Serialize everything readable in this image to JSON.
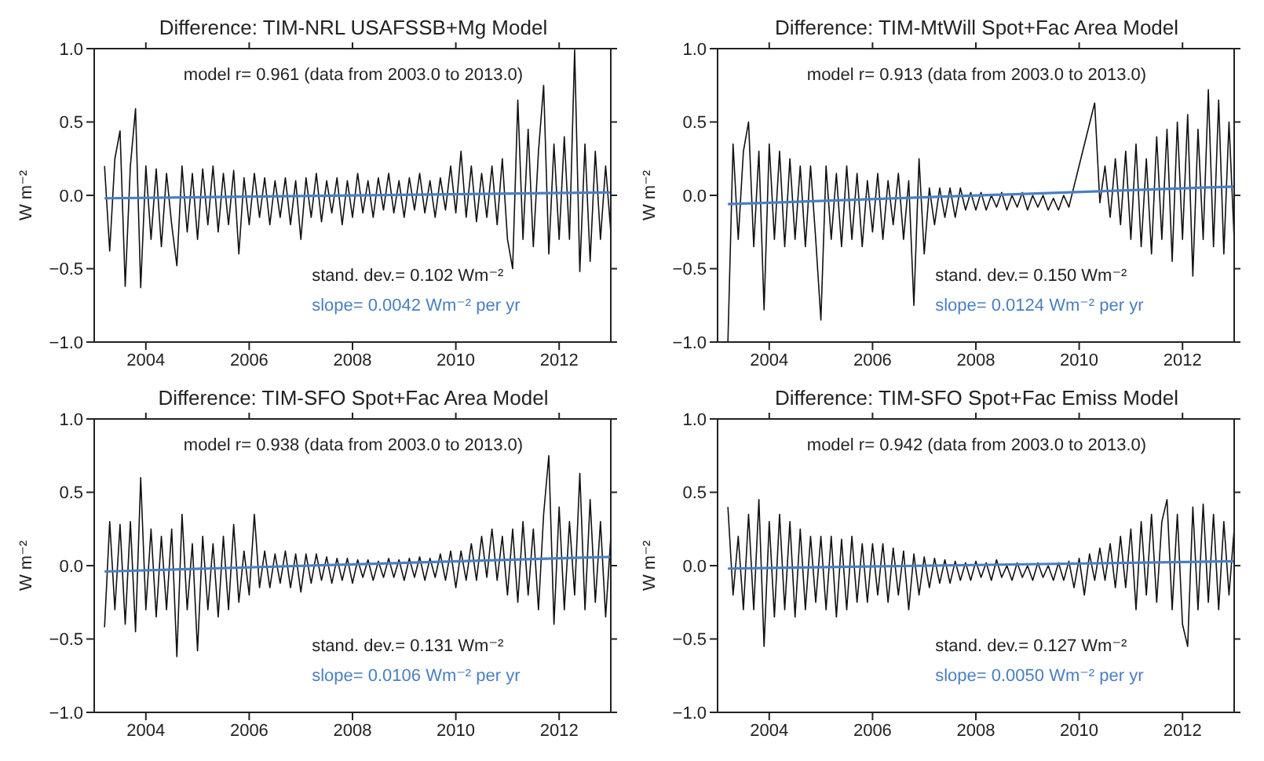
{
  "chart_data": [
    {
      "type": "line",
      "title": "Difference: TIM-NRL USAFSSB+Mg Model",
      "ylabel": "W m⁻²",
      "annotations": [
        "model r= 0.961 (data from 2003.0 to 2013.0)",
        "stand. dev.= 0.102 Wm⁻²"
      ],
      "xlim": [
        2003,
        2013
      ],
      "xticks": [
        2004,
        2006,
        2008,
        2010,
        2012
      ],
      "ylim": [
        -1,
        1
      ],
      "yticks": [
        {
          "value": -1,
          "label": "−1.0"
        },
        {
          "value": -0.5,
          "label": "−0.5"
        },
        {
          "value": 0,
          "label": "0.0"
        },
        {
          "value": 0.5,
          "label": "0.5"
        },
        {
          "value": 1,
          "label": "1.0"
        }
      ],
      "marker": "none",
      "line_style": "solid",
      "series": [
        {
          "color": "#111111",
          "x": [
            2003.2,
            2003.3,
            2003.4,
            2003.5,
            2003.6,
            2003.7,
            2003.8,
            2003.9,
            2004.0,
            2004.1,
            2004.2,
            2004.3,
            2004.4,
            2004.5,
            2004.6,
            2004.7,
            2004.8,
            2004.9,
            2005.0,
            2005.1,
            2005.2,
            2005.3,
            2005.4,
            2005.5,
            2005.6,
            2005.7,
            2005.8,
            2005.9,
            2006.0,
            2006.1,
            2006.2,
            2006.3,
            2006.4,
            2006.5,
            2006.6,
            2006.7,
            2006.8,
            2006.9,
            2007.0,
            2007.1,
            2007.2,
            2007.3,
            2007.4,
            2007.5,
            2007.6,
            2007.7,
            2007.8,
            2007.9,
            2008.0,
            2008.1,
            2008.2,
            2008.3,
            2008.4,
            2008.5,
            2008.6,
            2008.7,
            2008.8,
            2008.9,
            2009.0,
            2009.1,
            2009.2,
            2009.3,
            2009.4,
            2009.5,
            2009.6,
            2009.7,
            2009.8,
            2009.9,
            2010.0,
            2010.1,
            2010.2,
            2010.3,
            2010.4,
            2010.5,
            2010.6,
            2010.7,
            2010.8,
            2010.9,
            2011.0,
            2011.1,
            2011.2,
            2011.3,
            2011.4,
            2011.5,
            2011.6,
            2011.7,
            2011.8,
            2011.9,
            2012.0,
            2012.1,
            2012.2,
            2012.3,
            2012.4,
            2012.5,
            2012.6,
            2012.7,
            2012.8,
            2012.9,
            2013.0
          ],
          "values": [
            0.2,
            -0.38,
            0.25,
            0.44,
            -0.62,
            0.2,
            0.59,
            -0.63,
            0.2,
            -0.3,
            0.18,
            -0.35,
            0.15,
            -0.2,
            -0.48,
            0.2,
            -0.25,
            0.15,
            -0.3,
            0.18,
            -0.2,
            0.2,
            -0.25,
            0.15,
            -0.2,
            0.17,
            -0.4,
            0.12,
            -0.2,
            0.15,
            -0.15,
            0.12,
            -0.2,
            0.1,
            -0.15,
            0.12,
            -0.2,
            0.1,
            -0.3,
            0.12,
            -0.15,
            0.15,
            -0.18,
            0.1,
            -0.12,
            0.12,
            -0.2,
            0.1,
            -0.15,
            0.15,
            -0.12,
            0.1,
            -0.15,
            0.12,
            -0.1,
            0.15,
            -0.12,
            0.1,
            -0.15,
            0.12,
            -0.1,
            0.15,
            -0.12,
            0.1,
            -0.15,
            0.12,
            -0.1,
            0.2,
            -0.12,
            0.3,
            -0.15,
            0.2,
            -0.18,
            0.15,
            -0.15,
            0.2,
            -0.2,
            0.25,
            -0.3,
            -0.5,
            0.65,
            -0.3,
            0.45,
            -0.35,
            0.3,
            0.75,
            -0.4,
            0.35,
            -0.3,
            0.4,
            -0.3,
            0.99,
            -0.52,
            0.35,
            -0.45,
            0.3,
            -0.3,
            0.2,
            -0.25
          ]
        },
        {
          "type": "line",
          "name": "slope=  0.0042 Wm⁻² per yr",
          "color": "#4a7fc1",
          "x": [
            2003.2,
            2013.0
          ],
          "values": [
            -0.02,
            0.02
          ]
        }
      ]
    },
    {
      "type": "line",
      "title": "Difference: TIM-MtWill Spot+Fac Area Model",
      "ylabel": "W m⁻²",
      "annotations": [
        "model r= 0.913 (data from 2003.0 to 2013.0)",
        "stand. dev.= 0.150 Wm⁻²"
      ],
      "xlim": [
        2003,
        2013
      ],
      "xticks": [
        2004,
        2006,
        2008,
        2010,
        2012
      ],
      "ylim": [
        -1,
        1
      ],
      "yticks": [
        {
          "value": -1,
          "label": "−1.0"
        },
        {
          "value": -0.5,
          "label": "−0.5"
        },
        {
          "value": 0,
          "label": "0.0"
        },
        {
          "value": 0.5,
          "label": "0.5"
        },
        {
          "value": 1,
          "label": "1.0"
        }
      ],
      "marker": "none",
      "line_style": "solid",
      "series": [
        {
          "color": "#111111",
          "x": [
            2003.2,
            2003.3,
            2003.4,
            2003.5,
            2003.6,
            2003.7,
            2003.8,
            2003.9,
            2004.0,
            2004.1,
            2004.2,
            2004.3,
            2004.4,
            2004.5,
            2004.6,
            2004.7,
            2004.8,
            2004.9,
            2005.0,
            2005.1,
            2005.2,
            2005.3,
            2005.4,
            2005.5,
            2005.6,
            2005.7,
            2005.8,
            2005.9,
            2006.0,
            2006.1,
            2006.2,
            2006.3,
            2006.4,
            2006.5,
            2006.6,
            2006.7,
            2006.8,
            2006.9,
            2007.0,
            2007.1,
            2007.2,
            2007.3,
            2007.4,
            2007.5,
            2007.6,
            2007.7,
            2007.8,
            2007.9,
            2008.0,
            2008.1,
            2008.2,
            2008.3,
            2008.4,
            2008.5,
            2008.6,
            2008.7,
            2008.8,
            2008.9,
            2009.0,
            2009.1,
            2009.2,
            2009.3,
            2009.4,
            2009.5,
            2009.6,
            2009.7,
            2009.8,
            2010.3,
            2010.4,
            2010.5,
            2010.6,
            2010.7,
            2010.8,
            2010.9,
            2011.0,
            2011.1,
            2011.2,
            2011.3,
            2011.4,
            2011.5,
            2011.6,
            2011.7,
            2011.8,
            2011.9,
            2012.0,
            2012.1,
            2012.2,
            2012.3,
            2012.4,
            2012.5,
            2012.6,
            2012.7,
            2012.8,
            2012.9,
            2013.0
          ],
          "values": [
            -1.0,
            0.35,
            -0.3,
            0.3,
            0.5,
            -0.35,
            0.3,
            -0.78,
            0.35,
            -0.3,
            0.3,
            -0.35,
            0.25,
            -0.3,
            0.2,
            -0.35,
            0.2,
            -0.3,
            -0.85,
            0.2,
            -0.3,
            0.15,
            -0.35,
            0.2,
            -0.3,
            0.15,
            -0.35,
            0.1,
            -0.25,
            0.15,
            -0.3,
            0.1,
            -0.2,
            0.15,
            -0.3,
            0.1,
            -0.75,
            0.25,
            -0.4,
            0.05,
            -0.2,
            0.05,
            -0.15,
            0.05,
            -0.15,
            0.05,
            -0.1,
            0.02,
            -0.1,
            0.02,
            -0.1,
            0.0,
            -0.08,
            0.02,
            -0.1,
            0.0,
            -0.08,
            0.02,
            -0.1,
            0.0,
            -0.08,
            0.0,
            -0.1,
            -0.02,
            -0.1,
            0.0,
            -0.08,
            0.63,
            -0.05,
            0.2,
            -0.15,
            0.25,
            -0.2,
            0.3,
            -0.3,
            0.35,
            -0.35,
            0.25,
            -0.4,
            0.4,
            -0.3,
            0.45,
            -0.45,
            0.5,
            -0.3,
            0.55,
            -0.55,
            0.45,
            -0.3,
            0.72,
            -0.35,
            0.65,
            -0.4,
            0.5,
            -0.3
          ]
        },
        {
          "type": "line",
          "name": "slope=  0.0124 Wm⁻² per yr",
          "color": "#4a7fc1",
          "x": [
            2003.2,
            2013.0
          ],
          "values": [
            -0.06,
            0.06
          ]
        }
      ]
    },
    {
      "type": "line",
      "title": "Difference: TIM-SFO Spot+Fac Area Model",
      "ylabel": "W m⁻²",
      "annotations": [
        "model r= 0.938 (data from 2003.0 to 2013.0)",
        "stand. dev.= 0.131 Wm⁻²"
      ],
      "xlim": [
        2003,
        2013
      ],
      "xticks": [
        2004,
        2006,
        2008,
        2010,
        2012
      ],
      "ylim": [
        -1,
        1
      ],
      "yticks": [
        {
          "value": -1,
          "label": "−1.0"
        },
        {
          "value": -0.5,
          "label": "−0.5"
        },
        {
          "value": 0,
          "label": "0.0"
        },
        {
          "value": 0.5,
          "label": "0.5"
        },
        {
          "value": 1,
          "label": "1.0"
        }
      ],
      "marker": "none",
      "line_style": "solid",
      "series": [
        {
          "color": "#111111",
          "x": [
            2003.2,
            2003.3,
            2003.4,
            2003.5,
            2003.6,
            2003.7,
            2003.8,
            2003.9,
            2004.0,
            2004.1,
            2004.2,
            2004.3,
            2004.4,
            2004.5,
            2004.6,
            2004.7,
            2004.8,
            2004.9,
            2005.0,
            2005.1,
            2005.2,
            2005.3,
            2005.4,
            2005.5,
            2005.6,
            2005.7,
            2005.8,
            2005.9,
            2006.0,
            2006.1,
            2006.2,
            2006.3,
            2006.4,
            2006.5,
            2006.6,
            2006.7,
            2006.8,
            2006.9,
            2007.0,
            2007.1,
            2007.2,
            2007.3,
            2007.4,
            2007.5,
            2007.6,
            2007.7,
            2007.8,
            2007.9,
            2008.0,
            2008.1,
            2008.2,
            2008.3,
            2008.4,
            2008.5,
            2008.6,
            2008.7,
            2008.8,
            2008.9,
            2009.0,
            2009.1,
            2009.2,
            2009.3,
            2009.4,
            2009.5,
            2009.6,
            2009.7,
            2009.8,
            2009.9,
            2010.0,
            2010.1,
            2010.2,
            2010.3,
            2010.4,
            2010.5,
            2010.6,
            2010.7,
            2010.8,
            2010.9,
            2011.0,
            2011.1,
            2011.2,
            2011.3,
            2011.4,
            2011.5,
            2011.6,
            2011.7,
            2011.8,
            2011.9,
            2012.0,
            2012.1,
            2012.2,
            2012.3,
            2012.4,
            2012.5,
            2012.6,
            2012.7,
            2012.8,
            2012.9,
            2013.0
          ],
          "values": [
            -0.42,
            0.3,
            -0.3,
            0.28,
            -0.4,
            0.3,
            -0.45,
            0.6,
            -0.3,
            0.25,
            -0.35,
            0.2,
            -0.3,
            0.25,
            -0.62,
            0.35,
            -0.3,
            0.15,
            -0.58,
            0.2,
            -0.3,
            0.15,
            -0.35,
            0.2,
            -0.3,
            0.28,
            -0.25,
            0.1,
            -0.2,
            0.35,
            -0.15,
            0.1,
            -0.15,
            0.08,
            -0.12,
            0.1,
            -0.15,
            0.08,
            -0.18,
            0.08,
            -0.12,
            0.08,
            -0.1,
            0.06,
            -0.12,
            0.05,
            -0.1,
            0.05,
            -0.12,
            0.04,
            -0.08,
            0.04,
            -0.1,
            0.03,
            -0.08,
            0.05,
            -0.08,
            0.04,
            -0.1,
            0.05,
            -0.08,
            0.06,
            -0.1,
            0.05,
            -0.08,
            0.08,
            -0.1,
            0.1,
            -0.15,
            0.1,
            -0.1,
            0.15,
            -0.1,
            0.2,
            -0.08,
            0.25,
            -0.1,
            0.2,
            -0.2,
            0.25,
            -0.25,
            0.3,
            -0.2,
            0.25,
            -0.3,
            0.35,
            0.75,
            -0.4,
            0.4,
            -0.3,
            0.3,
            -0.2,
            0.63,
            -0.3,
            0.45,
            -0.25,
            0.3,
            -0.35,
            0.2
          ]
        },
        {
          "type": "line",
          "name": "slope=  0.0106 Wm⁻² per yr",
          "color": "#4a7fc1",
          "x": [
            2003.2,
            2013.0
          ],
          "values": [
            -0.04,
            0.06
          ]
        }
      ]
    },
    {
      "type": "line",
      "title": "Difference: TIM-SFO Spot+Fac Emiss Model",
      "ylabel": "W m⁻²",
      "annotations": [
        "model r= 0.942 (data from 2003.0 to 2013.0)",
        "stand. dev.= 0.127 Wm⁻²"
      ],
      "xlim": [
        2003,
        2013
      ],
      "xticks": [
        2004,
        2006,
        2008,
        2010,
        2012
      ],
      "ylim": [
        -1,
        1
      ],
      "yticks": [
        {
          "value": -1,
          "label": "−1.0"
        },
        {
          "value": -0.5,
          "label": "−0.5"
        },
        {
          "value": 0,
          "label": "0.0"
        },
        {
          "value": 0.5,
          "label": "0.5"
        },
        {
          "value": 1,
          "label": "1.0"
        }
      ],
      "marker": "none",
      "line_style": "solid",
      "series": [
        {
          "color": "#111111",
          "x": [
            2003.2,
            2003.3,
            2003.4,
            2003.5,
            2003.6,
            2003.7,
            2003.8,
            2003.9,
            2004.0,
            2004.1,
            2004.2,
            2004.3,
            2004.4,
            2004.5,
            2004.6,
            2004.7,
            2004.8,
            2004.9,
            2005.0,
            2005.1,
            2005.2,
            2005.3,
            2005.4,
            2005.5,
            2005.6,
            2005.7,
            2005.8,
            2005.9,
            2006.0,
            2006.1,
            2006.2,
            2006.3,
            2006.4,
            2006.5,
            2006.6,
            2006.7,
            2006.8,
            2006.9,
            2007.0,
            2007.1,
            2007.2,
            2007.3,
            2007.4,
            2007.5,
            2007.6,
            2007.7,
            2007.8,
            2007.9,
            2008.0,
            2008.1,
            2008.2,
            2008.3,
            2008.4,
            2008.5,
            2008.6,
            2008.7,
            2008.8,
            2008.9,
            2009.0,
            2009.1,
            2009.2,
            2009.3,
            2009.4,
            2009.5,
            2009.6,
            2009.7,
            2009.8,
            2009.9,
            2010.0,
            2010.1,
            2010.2,
            2010.3,
            2010.4,
            2010.5,
            2010.6,
            2010.7,
            2010.8,
            2010.9,
            2011.0,
            2011.1,
            2011.2,
            2011.3,
            2011.4,
            2011.5,
            2011.6,
            2011.7,
            2011.8,
            2011.9,
            2012.0,
            2012.1,
            2012.2,
            2012.3,
            2012.4,
            2012.5,
            2012.6,
            2012.7,
            2012.8,
            2012.9,
            2013.0
          ],
          "values": [
            0.4,
            -0.2,
            0.2,
            -0.3,
            0.35,
            -0.3,
            0.45,
            -0.55,
            0.3,
            -0.35,
            0.35,
            -0.3,
            0.3,
            -0.35,
            0.25,
            -0.3,
            0.2,
            -0.25,
            0.2,
            -0.3,
            0.2,
            -0.35,
            0.18,
            -0.3,
            0.2,
            -0.25,
            0.15,
            -0.25,
            0.15,
            -0.2,
            0.15,
            -0.25,
            0.12,
            -0.2,
            0.1,
            -0.3,
            0.08,
            -0.2,
            0.06,
            -0.15,
            0.05,
            -0.12,
            0.04,
            -0.12,
            0.03,
            -0.1,
            0.02,
            -0.1,
            0.03,
            -0.08,
            0.02,
            -0.1,
            0.04,
            -0.08,
            0.0,
            -0.1,
            0.02,
            -0.08,
            0.0,
            -0.1,
            0.02,
            -0.08,
            0.0,
            -0.1,
            0.02,
            -0.1,
            0.03,
            -0.15,
            0.05,
            -0.2,
            0.08,
            -0.1,
            0.12,
            -0.1,
            0.15,
            -0.15,
            0.2,
            -0.15,
            0.25,
            -0.3,
            0.3,
            -0.2,
            0.35,
            -0.25,
            0.3,
            0.45,
            -0.3,
            0.35,
            -0.4,
            -0.55,
            0.4,
            -0.3,
            0.42,
            -0.25,
            0.35,
            -0.3,
            0.3,
            -0.2,
            0.25
          ]
        },
        {
          "type": "line",
          "name": "slope=  0.0050 Wm⁻² per yr",
          "color": "#4a7fc1",
          "x": [
            2003.2,
            2013.0
          ],
          "values": [
            -0.02,
            0.03
          ]
        }
      ]
    }
  ]
}
